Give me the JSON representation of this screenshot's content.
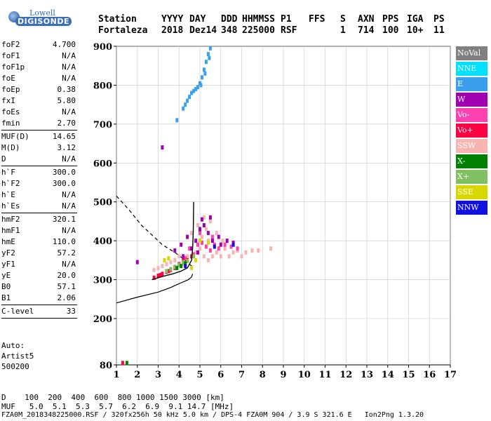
{
  "logo": {
    "line1": "Lowell",
    "line2": "DIGISONDE"
  },
  "header": {
    "labels": [
      "Station",
      "YYYY",
      "DAY",
      "DDD",
      "HHMMSS",
      "P1",
      "FFS",
      "S",
      "AXN",
      "PPS",
      "IGA",
      "PS"
    ],
    "values": [
      "Fortaleza",
      "2018",
      "Dez14",
      "348",
      "225000",
      "RSF",
      "",
      "1",
      "714",
      "100",
      "10+",
      "11"
    ]
  },
  "params": [
    {
      "name": "foF2",
      "value": "4.700"
    },
    {
      "name": "foF1",
      "value": "N/A"
    },
    {
      "name": "foF1p",
      "value": "N/A"
    },
    {
      "name": "foE",
      "value": "N/A"
    },
    {
      "name": "foEp",
      "value": "0.38"
    },
    {
      "name": "fxI",
      "value": "5.80"
    },
    {
      "name": "foEs",
      "value": "N/A"
    },
    {
      "name": "fmin",
      "value": "2.70",
      "sep": true
    },
    {
      "name": "MUF(D)",
      "value": "14.65"
    },
    {
      "name": "M(D)",
      "value": "3.12"
    },
    {
      "name": "D",
      "value": "N/A",
      "sep": true
    },
    {
      "name": "h`F",
      "value": "300.0"
    },
    {
      "name": "h`F2",
      "value": "300.0"
    },
    {
      "name": "h`E",
      "value": "N/A"
    },
    {
      "name": "h`Es",
      "value": "N/A",
      "sep": true
    },
    {
      "name": "hmF2",
      "value": "320.1"
    },
    {
      "name": "hmF1",
      "value": "N/A"
    },
    {
      "name": "hmE",
      "value": "110.0"
    },
    {
      "name": "yF2",
      "value": "57.2"
    },
    {
      "name": "yF1",
      "value": "N/A"
    },
    {
      "name": "yE",
      "value": "20.0"
    },
    {
      "name": "B0",
      "value": "57.1"
    },
    {
      "name": "B1",
      "value": "2.06",
      "sep": true
    },
    {
      "name": "C-level",
      "value": "33",
      "sep": true
    }
  ],
  "auto": {
    "line1": "Auto:",
    "line2": "Artist5",
    "line3": "500200"
  },
  "legend": [
    {
      "label": "NoVal",
      "color": "#808080"
    },
    {
      "label": "NNE",
      "color": "#00e0ff"
    },
    {
      "label": "E",
      "color": "#3aa0ee"
    },
    {
      "label": "W",
      "color": "#a000b0"
    },
    {
      "label": "Vo-",
      "color": "#ff40b0"
    },
    {
      "label": "Vo+",
      "color": "#ff0040"
    },
    {
      "label": "SSW",
      "color": "#f8b4b0"
    },
    {
      "label": "X-",
      "color": "#008000"
    },
    {
      "label": "X+",
      "color": "#80c060"
    },
    {
      "label": "SSE",
      "color": "#d8d800"
    },
    {
      "label": "NNW",
      "color": "#1010e0"
    }
  ],
  "bottom": {
    "d_row": "D    100  200  400  600  800 1000 1500 3000 [km]",
    "muf_row": "MUF   5.0  5.1  5.3  5.7  6.2  6.9  9.1 14.7 [MHz]",
    "footer": "FZA0M_2018348225000.RSF / 320fx256h 50 kHz 5.0 km / DPS-4 FZA0M 904 / 3.9 S 321.6 E   Ion2Png 1.3.20"
  },
  "chart_data": {
    "type": "scatter",
    "x_ticks": [
      1,
      2,
      3,
      4,
      5,
      6,
      7,
      8,
      9,
      10,
      11,
      12,
      13,
      14,
      15,
      16,
      17
    ],
    "y_ticks": [
      80,
      200,
      300,
      400,
      500,
      600,
      700,
      800,
      900
    ],
    "xlim": [
      1,
      17
    ],
    "ylim": [
      80,
      900
    ],
    "grid": true,
    "profile_solid": [
      [
        2.7,
        300
      ],
      [
        3.2,
        308
      ],
      [
        3.7,
        315
      ],
      [
        4.1,
        322
      ],
      [
        4.4,
        330
      ],
      [
        4.6,
        350
      ],
      [
        4.65,
        380
      ],
      [
        4.68,
        420
      ],
      [
        4.7,
        500
      ]
    ],
    "profile_lower": [
      [
        1,
        240
      ],
      [
        2,
        255
      ],
      [
        3,
        268
      ],
      [
        3.6,
        280
      ],
      [
        4.1,
        292
      ],
      [
        4.45,
        300
      ],
      [
        4.6,
        307
      ],
      [
        4.65,
        315
      ]
    ],
    "profile_dashed": [
      [
        1,
        515
      ],
      [
        1.6,
        480
      ],
      [
        2.2,
        440
      ],
      [
        2.8,
        410
      ],
      [
        3.2,
        390
      ],
      [
        3.8,
        370
      ],
      [
        4.3,
        350
      ],
      [
        4.7,
        330
      ]
    ],
    "traces": [
      {
        "name": "E",
        "color": "#3aa0ee",
        "points": [
          [
            4.2,
            740
          ],
          [
            4.4,
            760
          ],
          [
            4.6,
            780
          ],
          [
            4.8,
            790
          ],
          [
            5.0,
            805
          ],
          [
            5.1,
            820
          ],
          [
            5.2,
            840
          ],
          [
            5.3,
            860
          ],
          [
            5.4,
            880
          ],
          [
            5.5,
            895
          ],
          [
            5.45,
            870
          ],
          [
            5.25,
            830
          ],
          [
            5.05,
            800
          ],
          [
            4.9,
            795
          ],
          [
            4.7,
            785
          ],
          [
            4.5,
            770
          ],
          [
            4.3,
            750
          ],
          [
            3.9,
            710
          ]
        ]
      },
      {
        "name": "SSW",
        "color": "#f8b4b0",
        "points": [
          [
            4.4,
            360
          ],
          [
            4.8,
            370
          ],
          [
            5.0,
            380
          ],
          [
            5.2,
            360
          ],
          [
            5.4,
            350
          ],
          [
            5.6,
            360
          ],
          [
            5.8,
            370
          ],
          [
            6.0,
            360
          ],
          [
            6.2,
            380
          ],
          [
            6.4,
            360
          ],
          [
            6.6,
            370
          ],
          [
            6.8,
            375
          ],
          [
            7.0,
            360
          ],
          [
            7.2,
            370
          ],
          [
            7.5,
            375
          ],
          [
            7.8,
            375
          ],
          [
            8.4,
            380
          ],
          [
            5.1,
            410
          ],
          [
            5.3,
            430
          ],
          [
            5.5,
            450
          ],
          [
            5.2,
            460
          ],
          [
            5.4,
            400
          ],
          [
            5.8,
            420
          ],
          [
            6.1,
            400
          ],
          [
            4.6,
            420
          ],
          [
            4.9,
            440
          ],
          [
            3.2,
            335
          ],
          [
            3.4,
            340
          ],
          [
            3.6,
            345
          ],
          [
            3.8,
            350
          ],
          [
            4.0,
            360
          ],
          [
            4.2,
            340
          ],
          [
            3.0,
            330
          ],
          [
            2.8,
            325
          ]
        ]
      },
      {
        "name": "Vo-",
        "color": "#ff40b0",
        "points": [
          [
            4.5,
            380
          ],
          [
            4.9,
            390
          ],
          [
            5.1,
            395
          ],
          [
            5.3,
            385
          ],
          [
            5.5,
            375
          ],
          [
            5.7,
            390
          ],
          [
            5.9,
            380
          ],
          [
            6.2,
            390
          ],
          [
            6.5,
            385
          ],
          [
            6.8,
            380
          ],
          [
            4.7,
            365
          ],
          [
            4.3,
            355
          ],
          [
            5.6,
            410
          ],
          [
            5.0,
            420
          ]
        ]
      },
      {
        "name": "W",
        "color": "#a000b0",
        "points": [
          [
            4.2,
            360
          ],
          [
            4.6,
            380
          ],
          [
            4.8,
            400
          ],
          [
            5.0,
            430
          ],
          [
            5.2,
            440
          ],
          [
            5.4,
            420
          ],
          [
            5.6,
            400
          ],
          [
            6.0,
            390
          ],
          [
            6.3,
            400
          ],
          [
            6.6,
            395
          ],
          [
            4.4,
            410
          ],
          [
            4.9,
            370
          ],
          [
            4.1,
            390
          ],
          [
            3.8,
            375
          ],
          [
            5.5,
            460
          ],
          [
            5.1,
            455
          ],
          [
            2.0,
            345
          ],
          [
            3.2,
            640
          ],
          [
            5.9,
            410
          ]
        ]
      },
      {
        "name": "Vo+",
        "color": "#ff0040",
        "points": [
          [
            2.8,
            305
          ],
          [
            3.0,
            310
          ],
          [
            3.2,
            315
          ],
          [
            3.4,
            320
          ],
          [
            3.6,
            325
          ],
          [
            3.8,
            330
          ],
          [
            4.0,
            340
          ],
          [
            4.2,
            350
          ],
          [
            4.4,
            350
          ],
          [
            4.6,
            360
          ],
          [
            3.1,
            312
          ],
          [
            3.5,
            322
          ],
          [
            1.3,
            85
          ]
        ]
      },
      {
        "name": "X+",
        "color": "#80c060",
        "points": [
          [
            3.4,
            322
          ],
          [
            3.6,
            327
          ],
          [
            3.8,
            333
          ],
          [
            4.0,
            338
          ],
          [
            4.2,
            345
          ],
          [
            4.4,
            348
          ],
          [
            4.7,
            360
          ]
        ]
      },
      {
        "name": "X-",
        "color": "#008000",
        "points": [
          [
            3.9,
            330
          ],
          [
            4.1,
            335
          ],
          [
            4.3,
            342
          ],
          [
            1.5,
            85
          ]
        ]
      },
      {
        "name": "SSE",
        "color": "#d8d800",
        "points": [
          [
            3.3,
            350
          ],
          [
            3.5,
            355
          ],
          [
            4.6,
            330
          ],
          [
            4.8,
            350
          ],
          [
            5.0,
            400
          ],
          [
            5.4,
            395
          ]
        ]
      },
      {
        "name": "NNW",
        "color": "#1010e0",
        "points": [
          [
            6.6,
            390
          ],
          [
            5.7,
            385
          ],
          [
            4.3,
            335
          ]
        ]
      }
    ]
  }
}
